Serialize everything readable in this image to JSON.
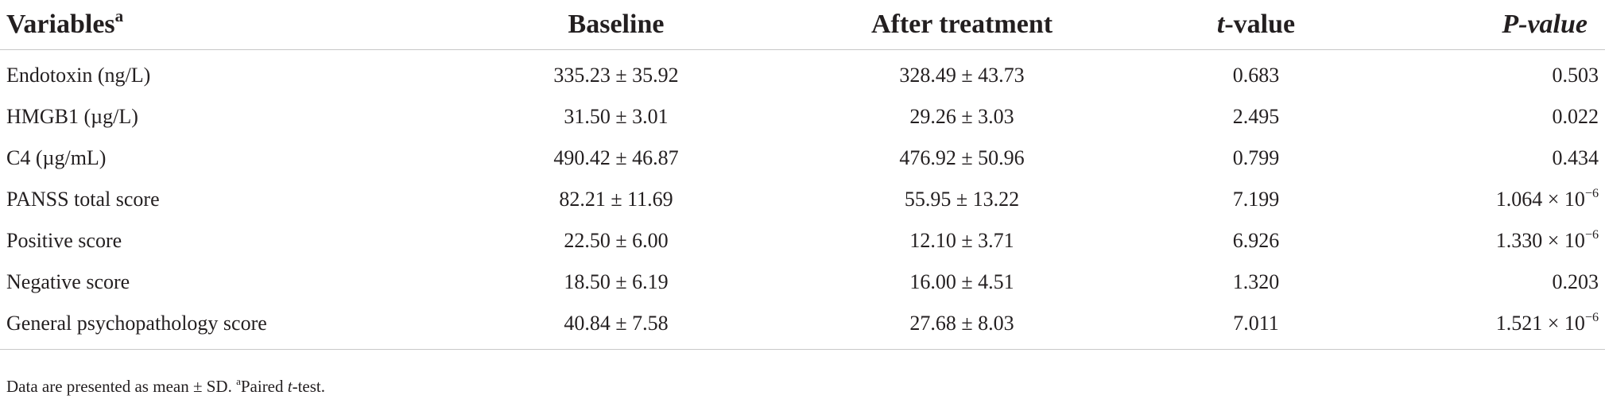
{
  "table": {
    "headers": {
      "variables": "Variables",
      "variables_sup": "a",
      "baseline": "Baseline",
      "after": "After treatment",
      "t_italic": "t",
      "t_rest": "-value",
      "p": "P-value"
    },
    "rows": [
      {
        "variable": "Endotoxin (ng/L)",
        "baseline": "335.23 ± 35.92",
        "after": "328.49 ± 43.73",
        "t": "0.683",
        "p": "0.503",
        "p_exp": ""
      },
      {
        "variable": "HMGB1 (µg/L)",
        "baseline": "31.50 ± 3.01",
        "after": "29.26 ± 3.03",
        "t": "2.495",
        "p": "0.022",
        "p_exp": ""
      },
      {
        "variable": "C4 (µg/mL)",
        "baseline": "490.42 ± 46.87",
        "after": "476.92 ± 50.96",
        "t": "0.799",
        "p": "0.434",
        "p_exp": ""
      },
      {
        "variable": "PANSS total score",
        "baseline": "82.21 ± 11.69",
        "after": "55.95 ± 13.22",
        "t": "7.199",
        "p": "1.064 × 10",
        "p_exp": "−6"
      },
      {
        "variable": "Positive score",
        "baseline": "22.50 ± 6.00",
        "after": "12.10 ± 3.71",
        "t": "6.926",
        "p": "1.330 × 10",
        "p_exp": "−6"
      },
      {
        "variable": "Negative score",
        "baseline": "18.50 ± 6.19",
        "after": "16.00 ± 4.51",
        "t": "1.320",
        "p": "0.203",
        "p_exp": ""
      },
      {
        "variable": "General psychopathology score",
        "baseline": "40.84 ± 7.58",
        "after": "27.68 ± 8.03",
        "t": "7.011",
        "p": "1.521 × 10",
        "p_exp": "−6"
      }
    ]
  },
  "footnote": {
    "part1": "Data are presented as mean ± SD. ",
    "sup": "a",
    "part2": "Paired ",
    "t_italic": "t",
    "part3": "-test."
  }
}
